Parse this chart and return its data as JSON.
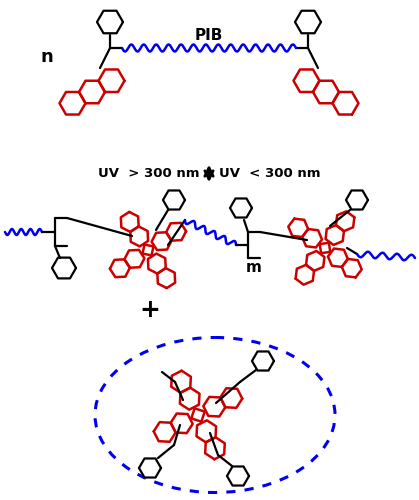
{
  "bg_color": "#ffffff",
  "blue_color": "#0000ee",
  "red_color": "#cc0000",
  "black_color": "#000000",
  "figsize": [
    4.19,
    5.0
  ],
  "dpi": 100,
  "pib_label": "PIB",
  "n_label": "n",
  "m_label": "m",
  "uv_left": "UV  > 300 nm",
  "uv_right": "UV  < 300 nm",
  "plus_sign": "+"
}
